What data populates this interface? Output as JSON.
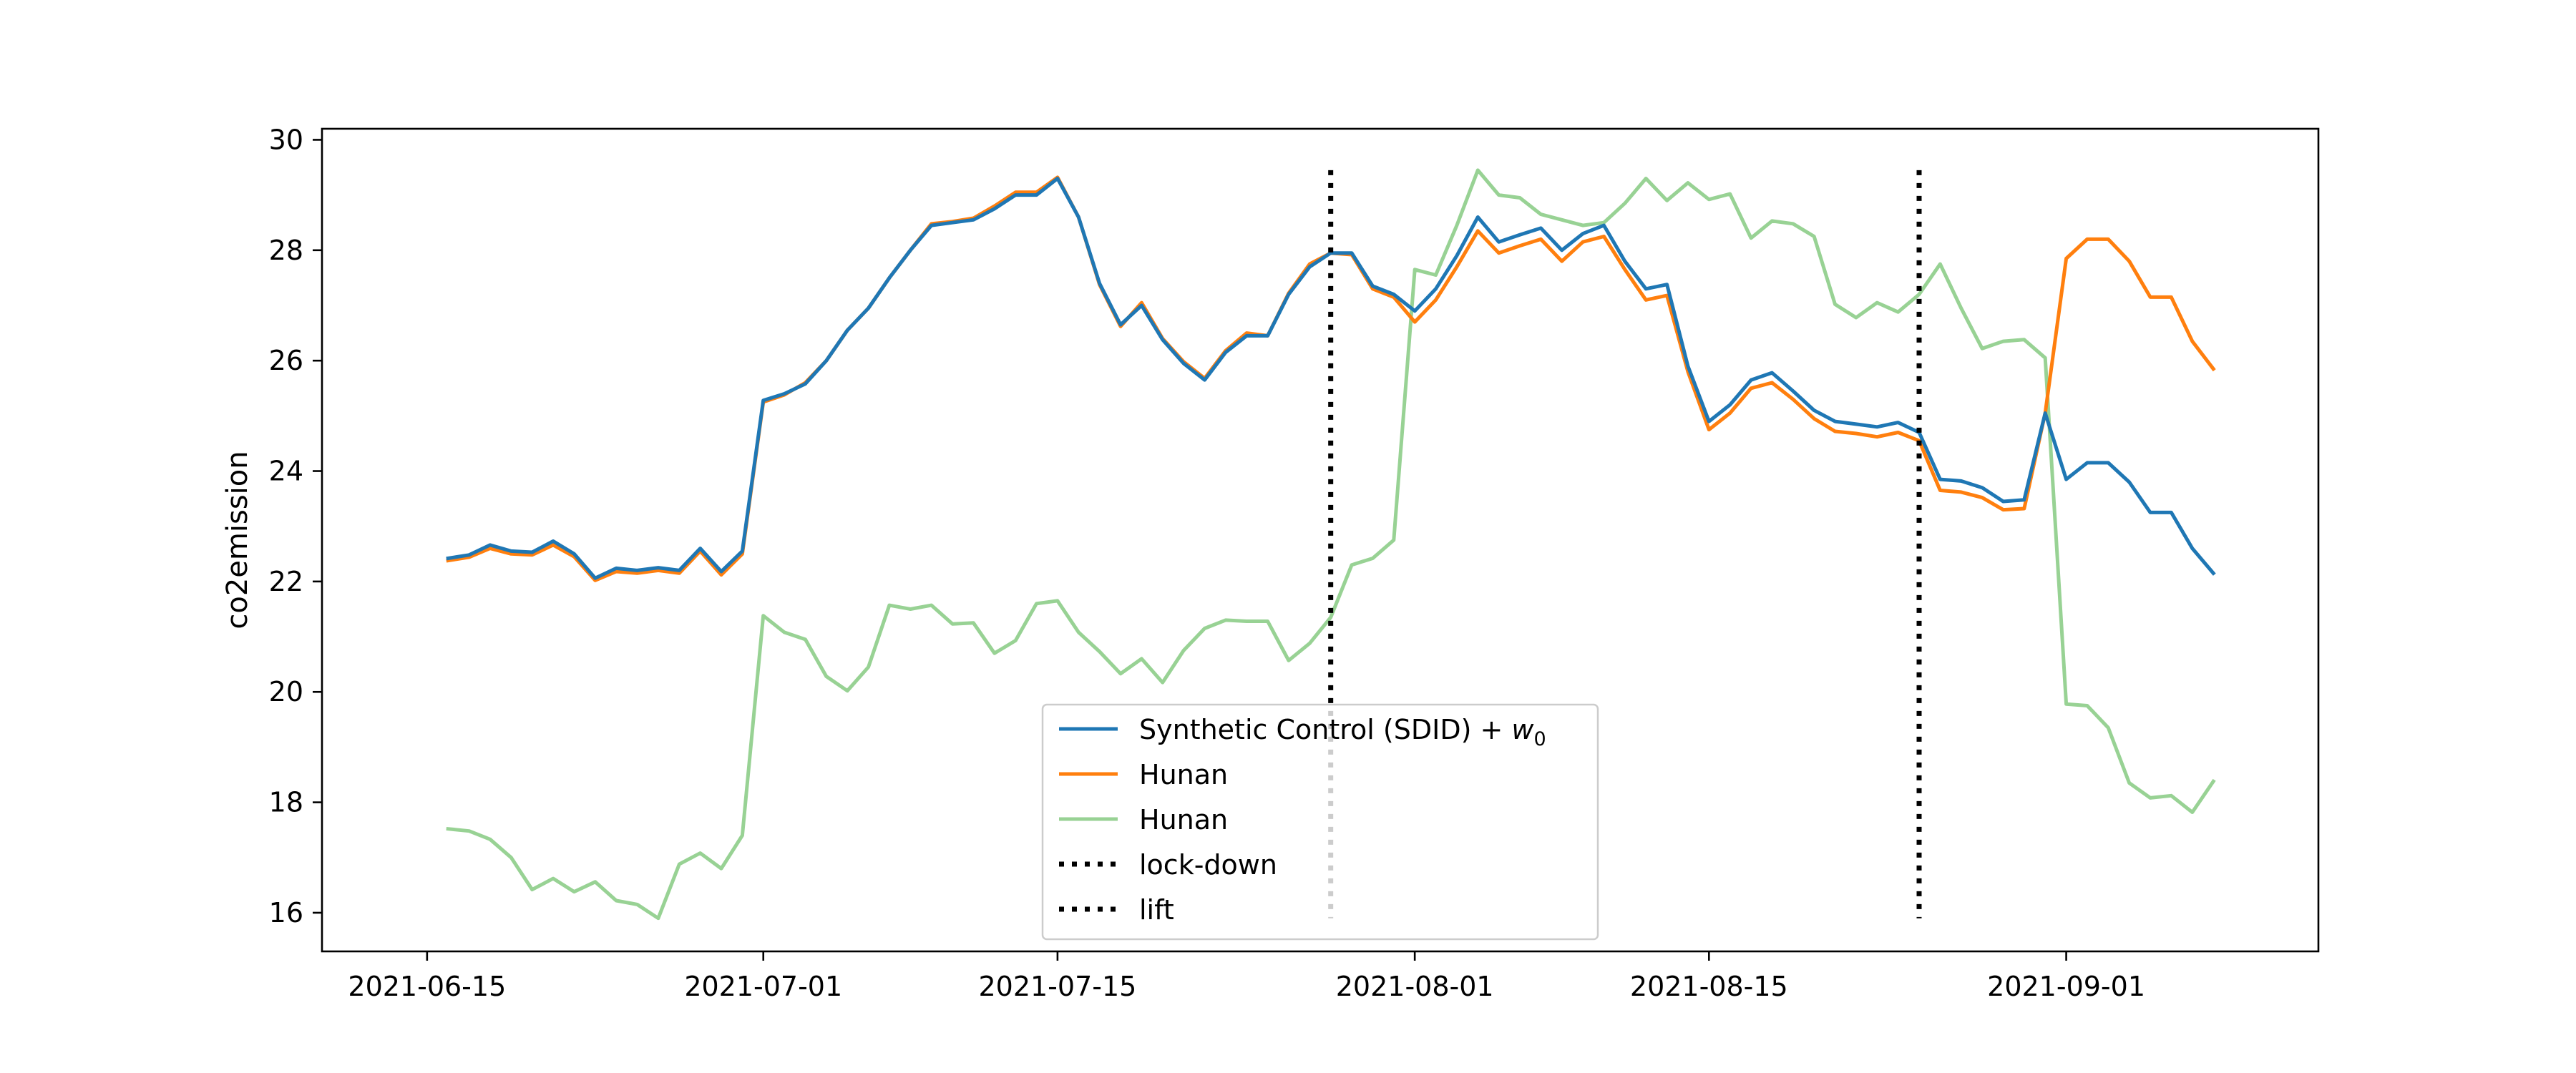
{
  "chart_data": {
    "type": "line",
    "title": "",
    "xlabel": "",
    "ylabel": "co2emission",
    "x_start": "2021-06-16",
    "x_step_days": 1,
    "xlim": [
      "2021-06-10",
      "2021-09-13"
    ],
    "ylim": [
      15.3,
      30.2
    ],
    "x_ticks": [
      "2021-06-15",
      "2021-07-01",
      "2021-07-15",
      "2021-08-01",
      "2021-08-15",
      "2021-09-01"
    ],
    "y_ticks": [
      16,
      18,
      20,
      22,
      24,
      26,
      28,
      30
    ],
    "grid": false,
    "legend_position": "lower-center",
    "series": [
      {
        "name": "Synthetic Control (SDID) + w0",
        "legend_main": "Synthetic Control (SDID) + ",
        "legend_sym": "w",
        "legend_sub": "0",
        "color": "#1f77b4",
        "values": [
          22.42,
          22.48,
          22.66,
          22.55,
          22.53,
          22.73,
          22.5,
          22.06,
          22.24,
          22.2,
          22.25,
          22.2,
          22.6,
          22.18,
          22.55,
          25.28,
          25.4,
          25.58,
          26.0,
          26.55,
          26.95,
          27.5,
          28.0,
          28.45,
          28.5,
          28.55,
          28.75,
          29.0,
          29.0,
          29.3,
          28.6,
          27.4,
          26.65,
          27.0,
          26.38,
          25.95,
          25.65,
          26.15,
          26.45,
          26.45,
          27.2,
          27.7,
          27.95,
          27.95,
          27.35,
          27.2,
          26.9,
          27.3,
          27.9,
          28.6,
          28.15,
          28.28,
          28.4,
          28.0,
          28.3,
          28.45,
          27.8,
          27.3,
          27.38,
          25.9,
          24.9,
          25.2,
          25.65,
          25.78,
          25.45,
          25.1,
          24.9,
          24.85,
          24.8,
          24.88,
          24.7,
          23.85,
          23.82,
          23.7,
          23.45,
          23.48,
          25.05,
          23.85,
          24.15,
          24.15,
          23.8,
          23.25,
          23.25,
          22.6,
          22.15
        ]
      },
      {
        "name": "Hunan",
        "color": "#ff7f0e",
        "values": [
          22.38,
          22.44,
          22.6,
          22.5,
          22.48,
          22.66,
          22.45,
          22.02,
          22.18,
          22.15,
          22.2,
          22.15,
          22.55,
          22.12,
          22.5,
          25.25,
          25.38,
          25.6,
          26.0,
          26.55,
          26.95,
          27.5,
          28.0,
          28.48,
          28.52,
          28.58,
          28.8,
          29.05,
          29.05,
          29.32,
          28.6,
          27.38,
          26.62,
          27.05,
          26.4,
          25.98,
          25.68,
          26.18,
          26.5,
          26.45,
          27.22,
          27.75,
          27.95,
          27.92,
          27.3,
          27.15,
          26.7,
          27.1,
          27.7,
          28.35,
          27.95,
          28.08,
          28.2,
          27.8,
          28.15,
          28.25,
          27.65,
          27.1,
          27.18,
          25.8,
          24.75,
          25.05,
          25.5,
          25.6,
          25.3,
          24.95,
          24.72,
          24.68,
          24.62,
          24.7,
          24.55,
          23.65,
          23.62,
          23.52,
          23.3,
          23.32,
          25.05,
          27.85,
          28.2,
          28.2,
          27.8,
          27.15,
          27.15,
          26.35,
          25.85
        ]
      },
      {
        "name": "Hunan",
        "color": "#98d294",
        "values": [
          17.52,
          17.48,
          17.33,
          17.0,
          16.42,
          16.62,
          16.38,
          16.56,
          16.22,
          16.15,
          15.9,
          16.88,
          17.08,
          16.8,
          17.4,
          21.38,
          21.08,
          20.95,
          20.28,
          20.02,
          20.45,
          21.57,
          21.5,
          21.57,
          21.23,
          21.25,
          20.7,
          20.93,
          21.6,
          21.65,
          21.08,
          20.73,
          20.33,
          20.6,
          20.17,
          20.75,
          21.15,
          21.3,
          21.28,
          21.28,
          20.57,
          20.88,
          21.35,
          22.3,
          22.42,
          22.75,
          27.65,
          27.55,
          28.45,
          29.45,
          29.0,
          28.95,
          28.65,
          28.55,
          28.45,
          28.5,
          28.85,
          29.3,
          28.9,
          29.22,
          28.92,
          29.02,
          28.22,
          28.53,
          28.48,
          28.25,
          27.02,
          26.78,
          27.05,
          26.88,
          27.2,
          27.75,
          26.95,
          26.22,
          26.35,
          26.38,
          26.05,
          19.78,
          19.75,
          19.35,
          18.35,
          18.08,
          18.12,
          17.82,
          18.38
        ]
      }
    ],
    "vlines": [
      {
        "name": "lock-down",
        "x": "2021-07-28",
        "color": "#000000"
      },
      {
        "name": "lift",
        "x": "2021-08-25",
        "color": "#000000"
      }
    ]
  }
}
